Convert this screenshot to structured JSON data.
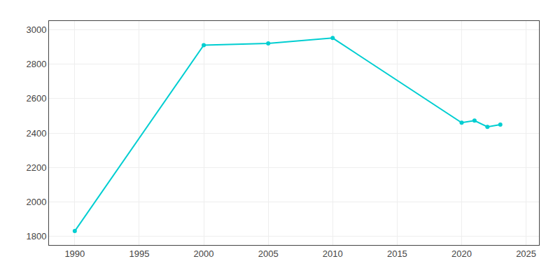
{
  "chart_data": {
    "type": "line",
    "x": [
      1990,
      2000,
      2005,
      2010,
      2020,
      2021,
      2022,
      2023
    ],
    "values": [
      1831,
      2910,
      2920,
      2951,
      2460,
      2472,
      2436,
      2449
    ],
    "color": "#00CED1",
    "marker": "circle",
    "xlim": [
      1988,
      2026
    ],
    "ylim": [
      1750,
      3050
    ],
    "xticks": [
      1990,
      1995,
      2000,
      2005,
      2010,
      2015,
      2020,
      2025
    ],
    "yticks": [
      1800,
      2000,
      2200,
      2400,
      2600,
      2800,
      3000
    ],
    "grid": true
  }
}
